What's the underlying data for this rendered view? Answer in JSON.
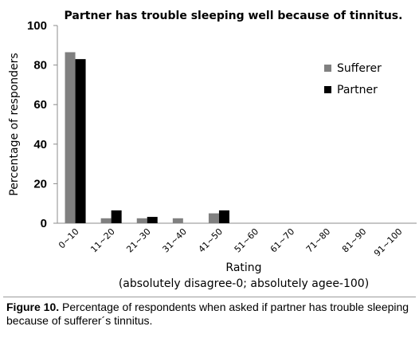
{
  "chart_data": {
    "type": "bar",
    "title": "Partner has trouble sleeping well because of tinnitus.",
    "xlabel": "Rating",
    "xlabel_note": "(absolutely disagree-0; absolutely agee-100)",
    "ylabel": "Percentage of responders",
    "ylim": [
      0,
      100
    ],
    "yticks": [
      0,
      20,
      40,
      60,
      80,
      100
    ],
    "categories": [
      "0~10",
      "11~20",
      "21~30",
      "31~40",
      "41~50",
      "51~60",
      "61~70",
      "71~80",
      "81~90",
      "91~100"
    ],
    "series": [
      {
        "name": "Sufferer",
        "color": "#808080",
        "values": [
          86.5,
          2.5,
          2.5,
          2.5,
          5,
          0,
          0,
          0,
          0,
          0
        ]
      },
      {
        "name": "Partner",
        "color": "#000000",
        "values": [
          83,
          6.5,
          3.2,
          0,
          6.5,
          0,
          0,
          0,
          0,
          0
        ]
      }
    ],
    "legend_position": "right",
    "grid": false
  },
  "caption": {
    "label": "Figure 10.",
    "text": " Percentage of respondents when asked if partner has trouble sleeping because of sufferer´s tinnitus."
  }
}
